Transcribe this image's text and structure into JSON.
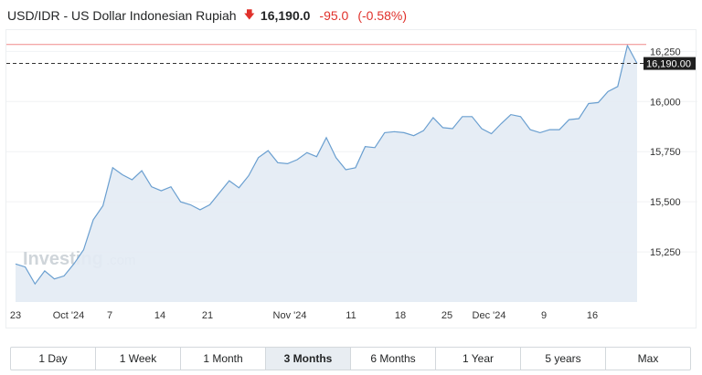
{
  "header": {
    "title": "USD/IDR - US Dollar Indonesian Rupiah",
    "direction_icon": "down-arrow-icon",
    "price": "16,190.0",
    "change": "-95.0",
    "change_pct": "(-0.58%)"
  },
  "colors": {
    "down": "#e0312b",
    "line": "#6a9fd0",
    "area": "#e3ebf4",
    "reference_line": "#f08a8a",
    "badge_bg": "#1f1f1f"
  },
  "watermark": {
    "brand": "Investing",
    "suffix": ".com"
  },
  "chart_data": {
    "type": "area",
    "x_tick_labels": [
      "23",
      "Oct '24",
      "7",
      "14",
      "21",
      "Nov '24",
      "11",
      "18",
      "25",
      "Dec '24",
      "9",
      "16"
    ],
    "y_tick_labels": [
      "16,250",
      "16,000",
      "15,750",
      "15,500",
      "15,250"
    ],
    "ylim": [
      15000,
      16320
    ],
    "current_value": 16190.0,
    "current_label": "16,190.00",
    "reference_value": 16285,
    "reference_line": "dashed",
    "values": [
      15190,
      15175,
      15090,
      15155,
      15115,
      15130,
      15190,
      15260,
      15410,
      15480,
      15670,
      15635,
      15610,
      15655,
      15575,
      15555,
      15575,
      15500,
      15485,
      15460,
      15485,
      15545,
      15605,
      15570,
      15630,
      15720,
      15755,
      15695,
      15690,
      15710,
      15745,
      15725,
      15820,
      15720,
      15660,
      15670,
      15775,
      15770,
      15845,
      15850,
      15845,
      15830,
      15855,
      15920,
      15870,
      15865,
      15925,
      15925,
      15865,
      15840,
      15890,
      15935,
      15925,
      15860,
      15845,
      15860,
      15860,
      15910,
      15915,
      15990,
      15995,
      16050,
      16075,
      16280,
      16190
    ]
  },
  "time_ranges": [
    {
      "label": "1 Day",
      "active": false
    },
    {
      "label": "1 Week",
      "active": false
    },
    {
      "label": "1 Month",
      "active": false
    },
    {
      "label": "3 Months",
      "active": true
    },
    {
      "label": "6 Months",
      "active": false
    },
    {
      "label": "1 Year",
      "active": false
    },
    {
      "label": "5 years",
      "active": false
    },
    {
      "label": "Max",
      "active": false
    }
  ]
}
